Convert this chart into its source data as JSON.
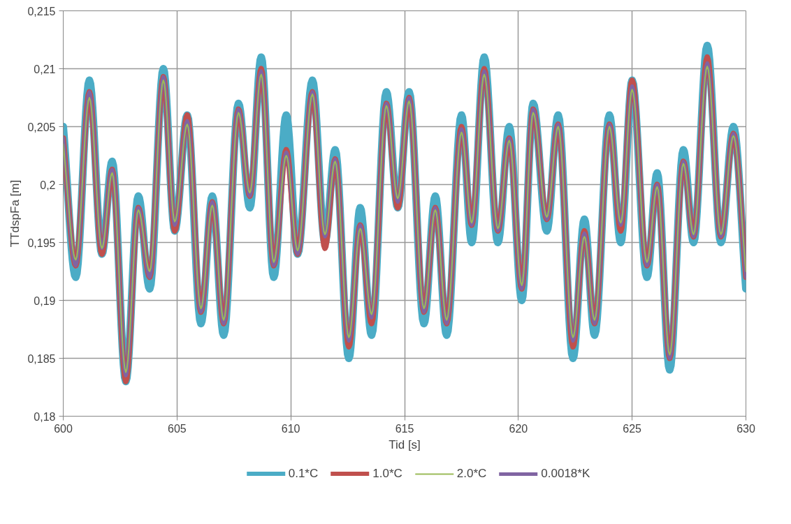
{
  "chart_data": {
    "type": "line",
    "xlabel": "Tid [s]",
    "ylabel": "TTdspFa [m]",
    "x": [
      600,
      600.55,
      601.15,
      601.7,
      602.15,
      602.75,
      603.3,
      603.8,
      604.4,
      604.9,
      605.45,
      606.05,
      606.55,
      607.05,
      607.7,
      608.2,
      608.7,
      609.25,
      609.8,
      610.3,
      610.95,
      611.5,
      611.95,
      612.55,
      613.05,
      613.55,
      614.2,
      614.7,
      615.2,
      615.85,
      616.35,
      616.85,
      617.5,
      617.95,
      618.5,
      619.1,
      619.6,
      620.15,
      620.65,
      621.25,
      621.75,
      622.4,
      622.9,
      623.35,
      624.0,
      624.5,
      625.0,
      625.65,
      626.1,
      626.65,
      627.25,
      627.7,
      628.3,
      628.9,
      629.45,
      630
    ],
    "series": [
      {
        "name": "0.1*C",
        "color": "#4bacc6",
        "values": [
          0.205,
          0.192,
          0.209,
          0.194,
          0.202,
          0.183,
          0.199,
          0.191,
          0.21,
          0.196,
          0.206,
          0.188,
          0.199,
          0.187,
          0.207,
          0.198,
          0.211,
          0.192,
          0.206,
          0.194,
          0.209,
          0.195,
          0.203,
          0.185,
          0.198,
          0.187,
          0.208,
          0.198,
          0.208,
          0.188,
          0.199,
          0.187,
          0.206,
          0.195,
          0.211,
          0.195,
          0.205,
          0.19,
          0.207,
          0.196,
          0.206,
          0.185,
          0.197,
          0.187,
          0.206,
          0.195,
          0.209,
          0.192,
          0.201,
          0.184,
          0.203,
          0.195,
          0.212,
          0.195,
          0.205,
          0.191
        ]
      },
      {
        "name": "1.0*C",
        "color": "#c0504d",
        "values": [
          0.204,
          0.193,
          0.208,
          0.194,
          0.2013,
          0.183,
          0.198,
          0.192,
          0.2093,
          0.196,
          0.206,
          0.189,
          0.1985,
          0.188,
          0.2065,
          0.199,
          0.21,
          0.193,
          0.203,
          0.194,
          0.208,
          0.1945,
          0.2022,
          0.186,
          0.1965,
          0.188,
          0.207,
          0.198,
          0.2075,
          0.189,
          0.198,
          0.188,
          0.205,
          0.1965,
          0.21,
          0.196,
          0.204,
          0.191,
          0.2065,
          0.197,
          0.2052,
          0.186,
          0.196,
          0.188,
          0.2052,
          0.196,
          0.209,
          0.193,
          0.2,
          0.185,
          0.202,
          0.1955,
          0.211,
          0.1955,
          0.2044,
          0.192
        ]
      },
      {
        "name": "2.0*C",
        "color": "#9bbb59",
        "values": [
          0.2035,
          0.1935,
          0.2075,
          0.1945,
          0.201,
          0.1838,
          0.1978,
          0.1925,
          0.209,
          0.1968,
          0.2052,
          0.1893,
          0.1982,
          0.1883,
          0.2062,
          0.1993,
          0.2095,
          0.1933,
          0.2025,
          0.1943,
          0.2078,
          0.1957,
          0.202,
          0.1868,
          0.1962,
          0.1888,
          0.2068,
          0.1988,
          0.2072,
          0.1893,
          0.1978,
          0.1883,
          0.2045,
          0.1967,
          0.2095,
          0.1962,
          0.2038,
          0.1913,
          0.2062,
          0.1972,
          0.205,
          0.1868,
          0.1955,
          0.1883,
          0.205,
          0.1967,
          0.2082,
          0.1933,
          0.1998,
          0.1853,
          0.2018,
          0.1957,
          0.2102,
          0.1957,
          0.2042,
          0.1925
        ]
      },
      {
        "name": "0.0018*K",
        "color": "#8064a2",
        "values": [
          0.204,
          0.193,
          0.208,
          0.1945,
          0.2013,
          0.1835,
          0.198,
          0.192,
          0.2093,
          0.1965,
          0.2055,
          0.189,
          0.1985,
          0.188,
          0.2065,
          0.199,
          0.2098,
          0.193,
          0.2028,
          0.194,
          0.208,
          0.1955,
          0.2022,
          0.1865,
          0.1965,
          0.1885,
          0.207,
          0.1985,
          0.2075,
          0.189,
          0.198,
          0.188,
          0.2048,
          0.1965,
          0.2098,
          0.196,
          0.204,
          0.191,
          0.2065,
          0.197,
          0.2052,
          0.1865,
          0.1958,
          0.188,
          0.2052,
          0.1965,
          0.2085,
          0.193,
          0.2,
          0.185,
          0.202,
          0.1955,
          0.2105,
          0.1955,
          0.2044,
          0.192
        ]
      }
    ],
    "xlim": [
      600,
      630
    ],
    "xticks": [
      600,
      605,
      610,
      615,
      620,
      625,
      630
    ],
    "ylim": [
      0.18,
      0.215
    ],
    "yticks": [
      {
        "value": 0.18,
        "label": "0,18"
      },
      {
        "value": 0.185,
        "label": "0,185"
      },
      {
        "value": 0.19,
        "label": "0,19"
      },
      {
        "value": 0.195,
        "label": "0,195"
      },
      {
        "value": 0.2,
        "label": "0,2"
      },
      {
        "value": 0.205,
        "label": "0,205"
      },
      {
        "value": 0.21,
        "label": "0,21"
      },
      {
        "value": 0.215,
        "label": "0,215"
      }
    ],
    "grid": true,
    "legend": "bottom",
    "marker": "none",
    "line_style": "solid"
  }
}
